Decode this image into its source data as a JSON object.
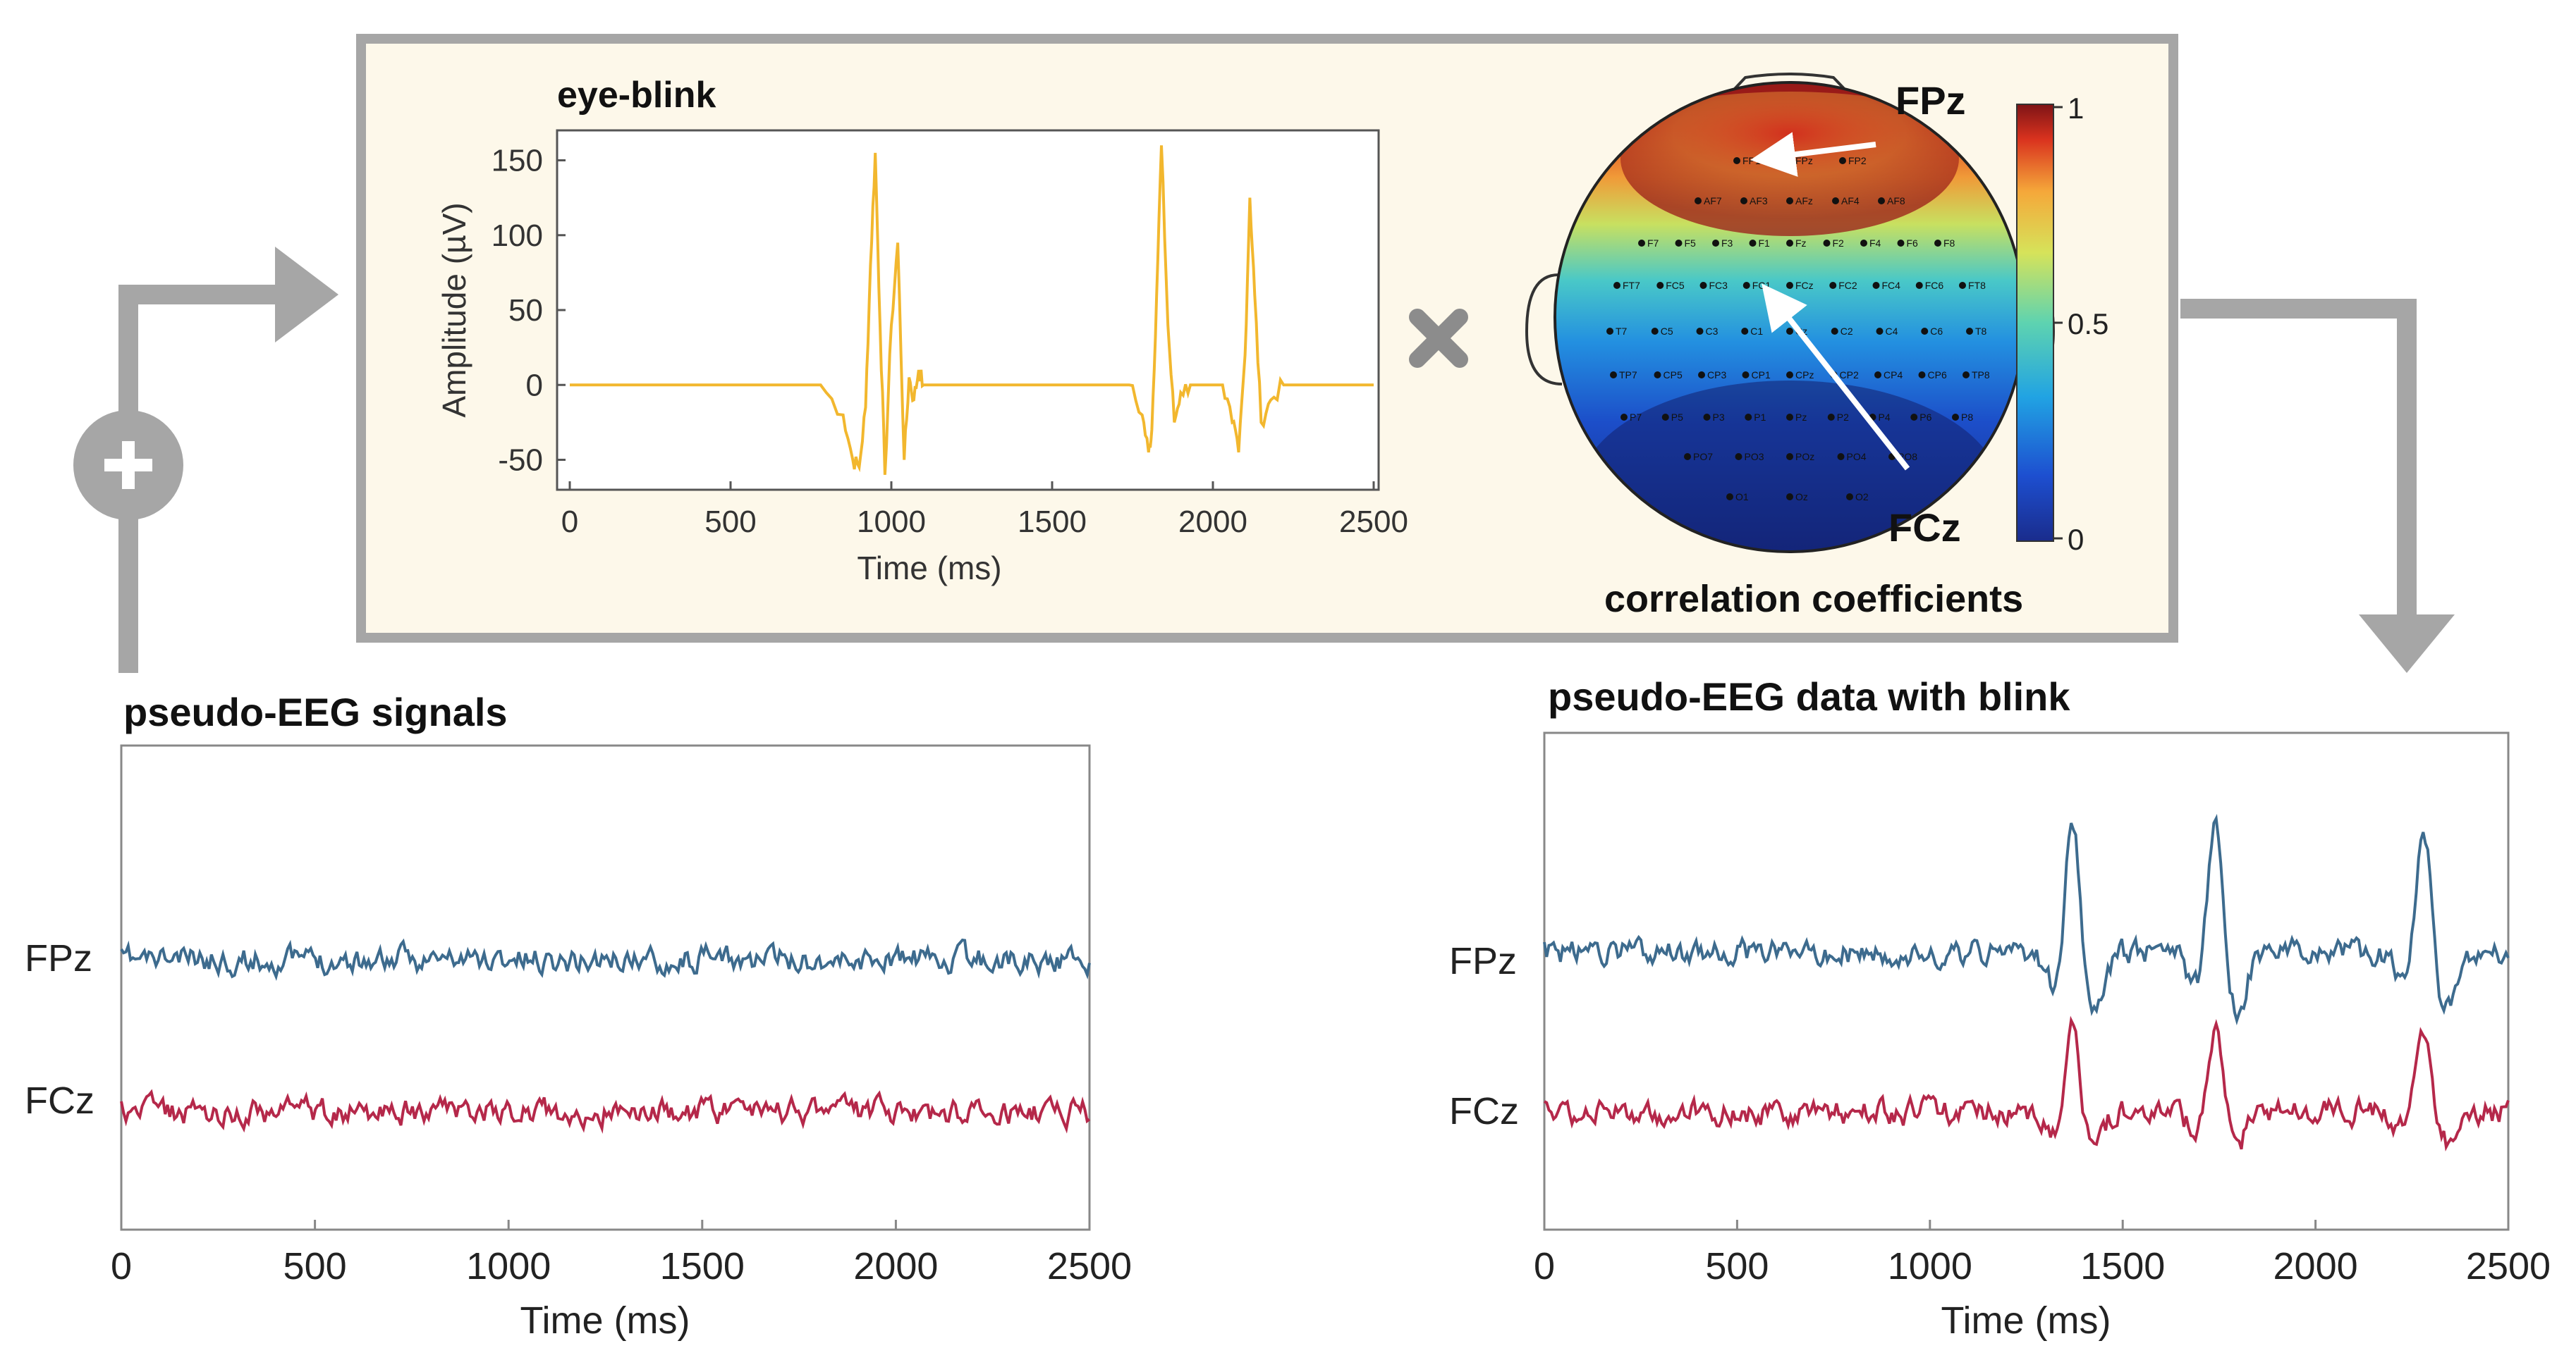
{
  "eye_blink_panel": {
    "title": "eye-blink",
    "ylabel": "Amplitude (µV)",
    "xlabel": "Time (ms)",
    "yticks": [
      "150",
      "100",
      "50",
      "0",
      "-50"
    ],
    "xticks": [
      "0",
      "500",
      "1000",
      "1500",
      "2000",
      "2500"
    ],
    "color": "#f2b72e"
  },
  "operator_icon": "multiply-icon",
  "plus_icon": "plus-icon",
  "topomap": {
    "labels": {
      "top": "FPz",
      "bottom": "FCz"
    },
    "caption": "correlation coefficients",
    "colorbar_ticks": [
      "1",
      "0.5",
      "0"
    ],
    "electrodes": [
      "FP1",
      "FPz",
      "FP2",
      "AF7",
      "AF3",
      "AFz",
      "AF4",
      "AF8",
      "F7",
      "F5",
      "F3",
      "F1",
      "Fz",
      "F2",
      "F4",
      "F6",
      "F8",
      "FT7",
      "FC5",
      "FC3",
      "FC1",
      "FCz",
      "FC2",
      "FC4",
      "FC6",
      "FT8",
      "T7",
      "C5",
      "C3",
      "C1",
      "Cz",
      "C2",
      "C4",
      "C6",
      "T8",
      "TP7",
      "CP5",
      "CP3",
      "CP1",
      "CPz",
      "CP2",
      "CP4",
      "CP6",
      "TP8",
      "P7",
      "P5",
      "P3",
      "P1",
      "Pz",
      "P2",
      "P4",
      "P6",
      "P8",
      "PO7",
      "PO3",
      "POz",
      "PO4",
      "PO8",
      "O1",
      "Oz",
      "O2"
    ]
  },
  "left_panel": {
    "title": "pseudo-EEG signals",
    "xlabel": "Time (ms)",
    "xticks": [
      "0",
      "500",
      "1000",
      "1500",
      "2000",
      "2500"
    ],
    "channels": [
      "FPz",
      "FCz"
    ]
  },
  "right_panel": {
    "title": "pseudo-EEG data with blink",
    "xlabel": "Time (ms)",
    "xticks": [
      "0",
      "500",
      "1000",
      "1500",
      "2000",
      "2500"
    ],
    "channels": [
      "FPz",
      "FCz"
    ]
  },
  "colors": {
    "fpz": "#3d6b8e",
    "fcz": "#b5284a",
    "panel_bg": "#fdf8ea",
    "panel_border": "#a6a6a6",
    "arrow": "#a6a6a6"
  },
  "chart_data": [
    {
      "type": "line",
      "title": "eye-blink",
      "xlabel": "Time (ms)",
      "ylabel": "Amplitude (µV)",
      "xlim": [
        0,
        2500
      ],
      "ylim": [
        -70,
        170
      ],
      "series": [
        {
          "name": "eye-blink",
          "x": [
            0,
            780,
            850,
            880,
            900,
            920,
            935,
            950,
            965,
            980,
            1000,
            1020,
            1040,
            1055,
            1070,
            1085,
            1100,
            1120,
            1700,
            1740,
            1780,
            1800,
            1810,
            1825,
            1840,
            1860,
            1880,
            1900,
            1930,
            2030,
            2060,
            2080,
            2100,
            2115,
            2130,
            2150,
            2180,
            2220,
            2500
          ],
          "y": [
            0,
            0,
            -20,
            -50,
            -55,
            -15,
            80,
            155,
            40,
            -60,
            40,
            95,
            -50,
            5,
            -10,
            10,
            0,
            0,
            0,
            0,
            -20,
            -45,
            -30,
            60,
            160,
            40,
            -25,
            -5,
            0,
            0,
            -25,
            -45,
            20,
            125,
            60,
            -25,
            -10,
            0,
            0
          ]
        }
      ]
    },
    {
      "type": "line",
      "title": "pseudo-EEG signals",
      "xlabel": "Time (ms)",
      "xlim": [
        0,
        2500
      ],
      "series": [
        {
          "name": "FPz",
          "baseline_only": true,
          "blink_peaks_ms": []
        },
        {
          "name": "FCz",
          "baseline_only": true,
          "blink_peaks_ms": []
        }
      ]
    },
    {
      "type": "line",
      "title": "pseudo-EEG data with blink",
      "xlabel": "Time (ms)",
      "xlim": [
        0,
        2500
      ],
      "series": [
        {
          "name": "FPz",
          "blink_peaks_ms": [
            1370,
            1740,
            2280
          ]
        },
        {
          "name": "FCz",
          "blink_peaks_ms": [
            1370,
            1740,
            2280
          ]
        }
      ]
    }
  ]
}
